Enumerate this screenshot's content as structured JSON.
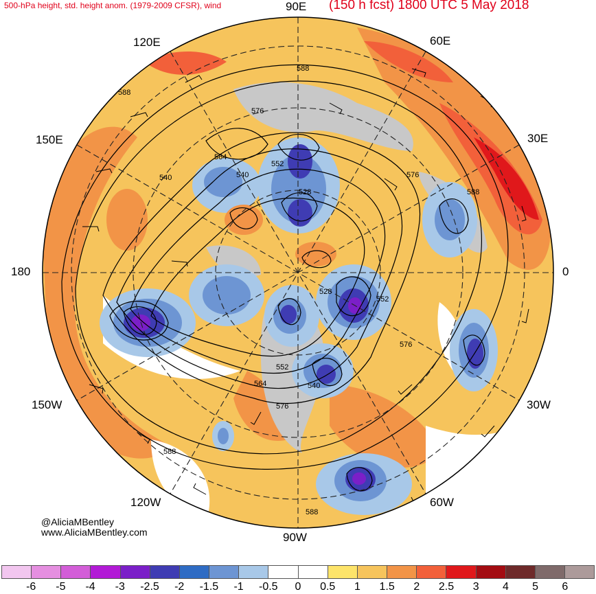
{
  "title_left": "500-hPa height, std. height anom. (1979-2009 CFSR), wind",
  "title_right": "(150 h fcst) 1800 UTC 5 May 2018",
  "longitude_labels": {
    "lon_90e": "90E",
    "lon_60e": "60E",
    "lon_120e": "120E",
    "lon_30e": "30E",
    "lon_150e": "150E",
    "lon_180": "180",
    "lon_0": "0",
    "lon_150w": "150W",
    "lon_30w": "30W",
    "lon_120w": "120W",
    "lon_60w": "60W",
    "lon_90w": "90W"
  },
  "contour_labels": [
    "588",
    "576",
    "564",
    "552",
    "540",
    "528",
    "528",
    "552",
    "576",
    "552",
    "564",
    "540",
    "576",
    "588",
    "588",
    "576",
    "588",
    "540",
    "588"
  ],
  "credits": {
    "handle": "@AliciaMBentley",
    "website": "www.AliciaMBentley.com"
  },
  "colorbar": {
    "colors": [
      "#f2c6ef",
      "#e58fe0",
      "#d35ed8",
      "#b21ad6",
      "#7b1fc8",
      "#3f3cb3",
      "#2f6cc4",
      "#6d95d3",
      "#a8c8e8",
      "#ffffff",
      "#ffffff",
      "#fde46a",
      "#f6c45c",
      "#f29447",
      "#f2603a",
      "#e0181b",
      "#a30c12",
      "#6e2a2a",
      "#7f6a6a",
      "#ac9a9a"
    ],
    "ticks": [
      "-6",
      "-5",
      "-4",
      "-3",
      "-2.5",
      "-2",
      "-1.5",
      "-1",
      "-0.5",
      "0",
      "0.5",
      "1",
      "1.5",
      "2",
      "2.5",
      "3",
      "4",
      "5",
      "6"
    ]
  },
  "palette": {
    "positive_weak": "#fde46a",
    "positive_mid": "#f6c45c",
    "positive_strong": "#f29447",
    "positive_very_strong": "#e0181b",
    "negative_weak": "#a8c8e8",
    "negative_mid": "#6d95d3",
    "negative_strong": "#3f3cb3",
    "negative_extreme": "#7b1fc8",
    "terrain_mask": "#c8c8c8"
  }
}
